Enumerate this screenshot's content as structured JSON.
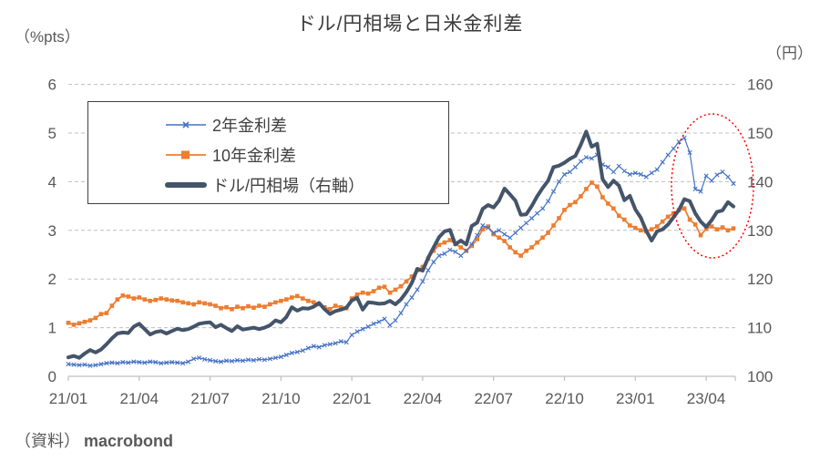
{
  "header": {
    "title": "ドル/円相場と日米金利差",
    "unit_left": "（%pts）",
    "unit_right": "（円）"
  },
  "legend": {
    "items": [
      {
        "label": "2年金利差"
      },
      {
        "label": "10年金利差"
      },
      {
        "label": "ドル/円相場（右軸）"
      }
    ]
  },
  "source": {
    "prefix": "（資料）",
    "name": "macrobond"
  },
  "colors": {
    "blue_2y": "#4472C4",
    "orange_10y": "#ED7D31",
    "navy_usdjpy": "#44546A",
    "gridline": "#BFBFBF",
    "axis_text": "#595959",
    "annotation_red": "#FF0000",
    "legend_border": "#404040"
  },
  "chart_data": {
    "type": "line",
    "title": "ドル/円相場と日米金利差",
    "frequency": "weekly",
    "x_start": "2021/01",
    "x_end": "2023/05",
    "x_tick_labels": [
      "21/01",
      "21/04",
      "21/07",
      "21/10",
      "22/01",
      "22/04",
      "22/07",
      "22/10",
      "23/01",
      "23/04"
    ],
    "y_left": {
      "label": "（%pts）",
      "range": [
        0,
        6
      ],
      "ticks": [
        6,
        5,
        4,
        3,
        2,
        1,
        0
      ]
    },
    "y_right": {
      "label": "（円）",
      "range": [
        100,
        160
      ],
      "ticks": [
        160,
        150,
        140,
        130,
        120,
        110,
        100
      ]
    },
    "grid": "dashed-horizontal",
    "legend_position": "top-left-inside-box",
    "annotation": {
      "shape": "ellipse",
      "style": "dotted",
      "color": "#FF0000",
      "note": "red dotted ellipse highlighting the most recent period (2023/02–2023/05)"
    },
    "series": [
      {
        "name": "2年金利差",
        "axis": "left",
        "color": "#4472C4",
        "marker": "x",
        "line_width": 1.2,
        "values": [
          0.25,
          0.24,
          0.23,
          0.24,
          0.22,
          0.23,
          0.25,
          0.27,
          0.28,
          0.27,
          0.29,
          0.28,
          0.3,
          0.29,
          0.28,
          0.3,
          0.29,
          0.27,
          0.28,
          0.29,
          0.28,
          0.27,
          0.3,
          0.36,
          0.38,
          0.35,
          0.33,
          0.31,
          0.3,
          0.32,
          0.31,
          0.33,
          0.32,
          0.34,
          0.33,
          0.35,
          0.34,
          0.36,
          0.38,
          0.4,
          0.44,
          0.48,
          0.5,
          0.53,
          0.58,
          0.62,
          0.6,
          0.64,
          0.66,
          0.68,
          0.72,
          0.7,
          0.85,
          0.92,
          0.97,
          1.02,
          1.08,
          1.12,
          1.18,
          1.05,
          1.15,
          1.3,
          1.48,
          1.62,
          1.78,
          1.95,
          2.18,
          2.35,
          2.48,
          2.52,
          2.6,
          2.56,
          2.48,
          2.58,
          2.72,
          2.9,
          3.1,
          3.05,
          2.95,
          3.0,
          2.92,
          2.85,
          2.95,
          3.05,
          3.15,
          3.25,
          3.35,
          3.45,
          3.6,
          3.8,
          4.0,
          4.15,
          4.2,
          4.3,
          4.42,
          4.5,
          4.48,
          4.55,
          4.35,
          4.3,
          4.2,
          4.32,
          4.22,
          4.15,
          4.18,
          4.15,
          4.1,
          4.18,
          4.25,
          4.4,
          4.55,
          4.68,
          4.82,
          4.9,
          4.6,
          3.85,
          3.8,
          4.12,
          4.02,
          4.14,
          4.2,
          4.1,
          3.96
        ]
      },
      {
        "name": "10年金利差",
        "axis": "left",
        "color": "#ED7D31",
        "marker": "square",
        "line_width": 1.8,
        "values": [
          1.1,
          1.06,
          1.09,
          1.12,
          1.15,
          1.2,
          1.28,
          1.3,
          1.45,
          1.58,
          1.66,
          1.64,
          1.6,
          1.62,
          1.58,
          1.55,
          1.57,
          1.6,
          1.58,
          1.56,
          1.55,
          1.52,
          1.5,
          1.48,
          1.52,
          1.5,
          1.48,
          1.45,
          1.4,
          1.42,
          1.38,
          1.43,
          1.4,
          1.44,
          1.41,
          1.45,
          1.43,
          1.48,
          1.52,
          1.55,
          1.58,
          1.62,
          1.65,
          1.6,
          1.55,
          1.52,
          1.48,
          1.42,
          1.38,
          1.45,
          1.42,
          1.4,
          1.6,
          1.68,
          1.72,
          1.7,
          1.75,
          1.82,
          1.84,
          1.72,
          1.78,
          1.85,
          1.95,
          2.05,
          2.18,
          2.25,
          2.42,
          2.58,
          2.7,
          2.75,
          2.8,
          2.72,
          2.65,
          2.58,
          2.68,
          2.82,
          3.02,
          3.08,
          2.92,
          2.85,
          2.78,
          2.65,
          2.55,
          2.48,
          2.58,
          2.65,
          2.75,
          2.85,
          2.95,
          3.1,
          3.25,
          3.42,
          3.52,
          3.58,
          3.7,
          3.85,
          3.98,
          3.9,
          3.68,
          3.55,
          3.45,
          3.3,
          3.22,
          3.1,
          3.05,
          3.0,
          2.98,
          3.02,
          3.08,
          3.18,
          3.28,
          3.35,
          3.42,
          3.45,
          3.22,
          3.12,
          2.9,
          3.03,
          3.08,
          3.02,
          3.06,
          3.0,
          3.04
        ]
      },
      {
        "name": "ドル/円相場（右軸）",
        "axis": "right",
        "color": "#44546A",
        "marker": "none",
        "line_width": 4,
        "values": [
          103.9,
          104.2,
          103.8,
          104.7,
          105.4,
          104.9,
          105.5,
          106.6,
          107.8,
          108.8,
          109.0,
          108.9,
          110.2,
          110.8,
          109.7,
          108.6,
          109.1,
          109.3,
          108.8,
          109.3,
          109.8,
          109.5,
          109.7,
          110.2,
          110.8,
          111.0,
          111.1,
          110.1,
          110.6,
          109.9,
          109.3,
          110.3,
          109.6,
          109.8,
          110.0,
          109.7,
          110.0,
          110.5,
          111.5,
          111.1,
          112.2,
          114.2,
          113.5,
          114.0,
          113.9,
          114.3,
          115.1,
          113.8,
          112.8,
          113.4,
          113.7,
          114.1,
          115.6,
          116.1,
          113.7,
          115.2,
          115.1,
          114.9,
          115.0,
          115.5,
          114.8,
          115.8,
          117.3,
          119.2,
          122.1,
          121.7,
          124.3,
          126.5,
          128.6,
          129.8,
          130.1,
          127.1,
          127.9,
          127.1,
          130.9,
          131.6,
          134.4,
          135.2,
          134.7,
          136.1,
          138.6,
          137.4,
          136.1,
          133.2,
          133.3,
          135.0,
          137.0,
          138.7,
          140.2,
          143.0,
          143.3,
          143.9,
          144.7,
          145.3,
          147.6,
          150.3,
          147.2,
          147.8,
          140.5,
          138.9,
          140.2,
          139.2,
          136.2,
          137.1,
          134.3,
          132.6,
          129.9,
          127.9,
          129.8,
          130.2,
          131.2,
          132.7,
          134.2,
          136.4,
          136.0,
          133.5,
          131.8,
          130.7,
          132.1,
          133.8,
          134.1,
          135.8,
          134.9
        ]
      }
    ]
  }
}
